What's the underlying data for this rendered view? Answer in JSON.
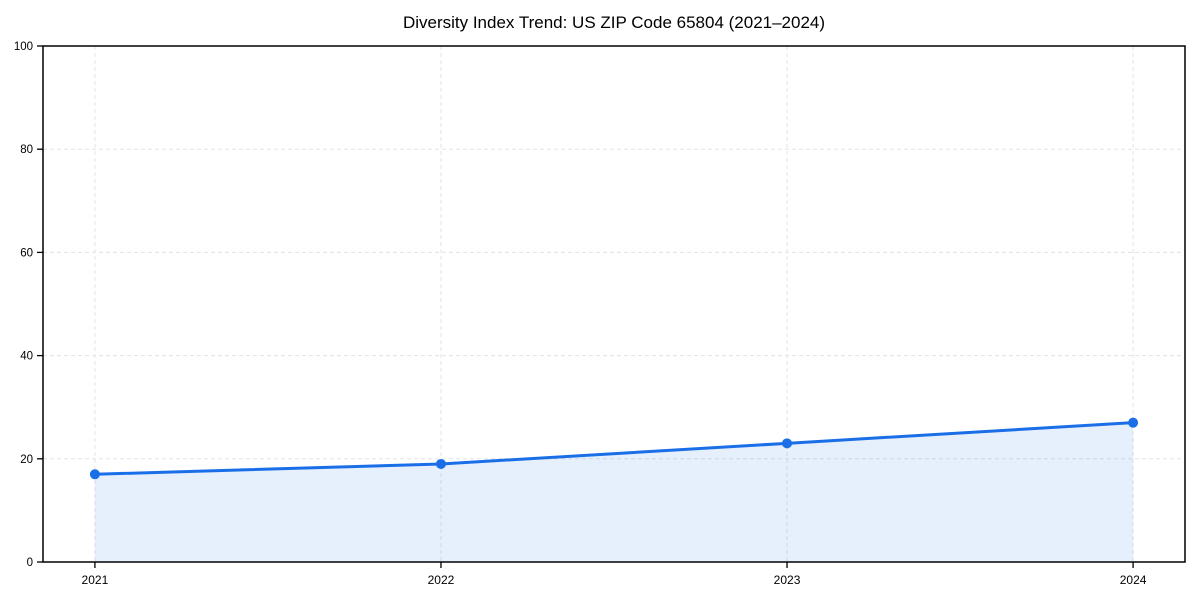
{
  "chart_data": {
    "type": "line",
    "title": "Diversity Index Trend: US ZIP Code 65804 (2021–2024)",
    "categories": [
      "2021",
      "2022",
      "2023",
      "2024"
    ],
    "series": [
      {
        "name": "Diversity Index",
        "values": [
          17,
          19,
          23,
          27
        ]
      }
    ],
    "xlabel": "",
    "ylabel": "",
    "ylim": [
      0,
      100
    ],
    "y_ticks": [
      0,
      20,
      40,
      60,
      80,
      100
    ],
    "grid": "dashed both axes",
    "legend": "none",
    "area_fill": true,
    "marker": "circle",
    "colors": {
      "line": "#1a6fe8",
      "marker": "#1a6fe8",
      "area_fill": "#1a6fe8",
      "area_fill_opacity": 0.11,
      "grid": "#e3e3e3",
      "spine": "#000000",
      "text": "#000000",
      "background": "#ffffff"
    }
  }
}
